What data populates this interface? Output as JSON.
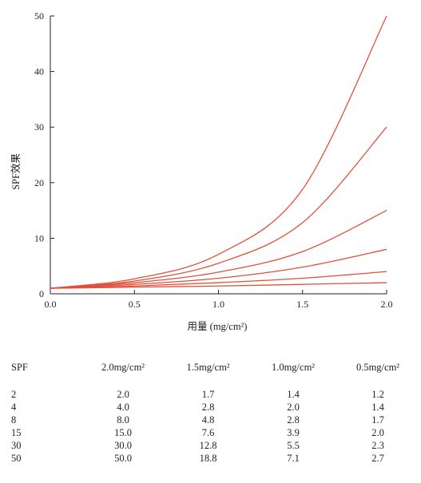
{
  "colors": {
    "curve": "#e0503a",
    "axis": "#222222"
  },
  "chart_data": {
    "type": "line",
    "title": "",
    "xlabel": "用量 (mg/cm²)",
    "ylabel": "SPF效果",
    "xlim": [
      0,
      2.0
    ],
    "ylim": [
      0,
      50
    ],
    "xticks": [
      "0.0",
      "0.5",
      "1.0",
      "1.5",
      "2.0"
    ],
    "yticks": [
      "0",
      "10",
      "20",
      "30",
      "40",
      "50"
    ],
    "x": [
      0,
      0.5,
      1.0,
      1.5,
      2.0
    ],
    "series": [
      {
        "values": [
          1.0,
          1.2,
          1.4,
          1.7,
          2.0
        ]
      },
      {
        "values": [
          1.0,
          1.4,
          2.0,
          2.8,
          4.0
        ]
      },
      {
        "values": [
          1.0,
          1.7,
          2.8,
          4.8,
          8.0
        ]
      },
      {
        "values": [
          1.0,
          2.0,
          3.9,
          7.6,
          15.0
        ]
      },
      {
        "values": [
          1.0,
          2.3,
          5.5,
          12.8,
          30.0
        ]
      },
      {
        "values": [
          1.0,
          2.7,
          7.1,
          18.8,
          50.0
        ]
      }
    ]
  },
  "table": {
    "headers": [
      "SPF",
      "2.0mg/cm²",
      "1.5mg/cm²",
      "1.0mg/cm²",
      "0.5mg/cm²"
    ],
    "rows": [
      [
        "2",
        "2.0",
        "1.7",
        "1.4",
        "1.2"
      ],
      [
        "4",
        "4.0",
        "2.8",
        "2.0",
        "1.4"
      ],
      [
        "8",
        "8.0",
        "4.8",
        "2.8",
        "1.7"
      ],
      [
        "15",
        "15.0",
        "7.6",
        "3.9",
        "2.0"
      ],
      [
        "30",
        "30.0",
        "12.8",
        "5.5",
        "2.3"
      ],
      [
        "50",
        "50.0",
        "18.8",
        "7.1",
        "2.7"
      ]
    ]
  }
}
